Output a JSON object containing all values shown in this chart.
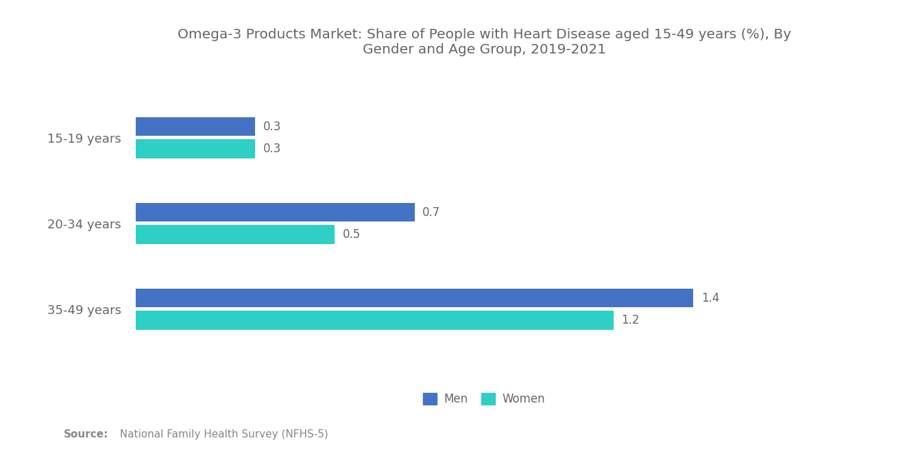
{
  "title": "Omega-3 Products Market: Share of People with Heart Disease aged 15-49 years (%), By\nGender and Age Group, 2019-2021",
  "title_fontsize": 14.5,
  "title_color": "#666666",
  "categories": [
    "35-49 years",
    "20-34 years",
    "15-19 years"
  ],
  "men_values": [
    1.4,
    0.7,
    0.3
  ],
  "women_values": [
    1.2,
    0.5,
    0.3
  ],
  "men_color": "#4472C4",
  "women_color": "#2ECFC4",
  "bar_height": 0.22,
  "bar_gap": 0.04,
  "value_fontsize": 12,
  "value_color": "#666666",
  "ylabel_fontsize": 13,
  "ylabel_color": "#666666",
  "xlim": [
    0,
    1.75
  ],
  "legend_labels": [
    "Men",
    "Women"
  ],
  "source_bold": "Source:",
  "source_rest": "  National Family Health Survey (NFHS-5)",
  "source_fontsize": 11,
  "source_color": "#888888",
  "background_color": "#ffffff"
}
